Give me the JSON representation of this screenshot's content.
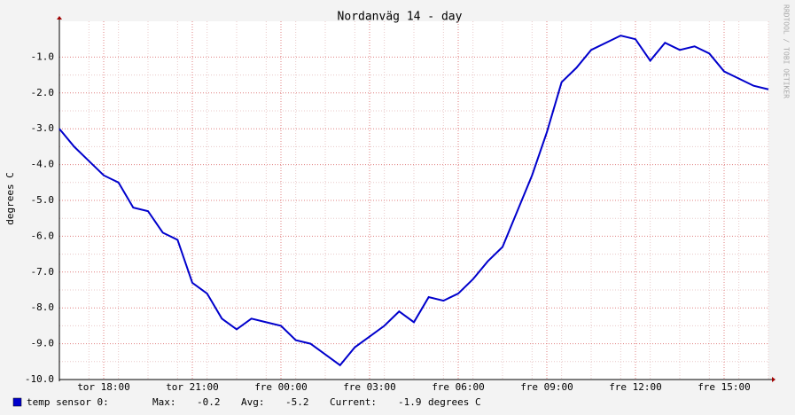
{
  "chart_data": {
    "type": "line",
    "title": "Nordanväg 14 - day",
    "y_label": "degrees C",
    "side_text": "RRDTOOL / TOBI OETIKER",
    "categories": [
      null,
      null,
      null,
      "tor 18:00",
      null,
      null,
      null,
      null,
      null,
      "tor 21:00",
      null,
      null,
      null,
      null,
      null,
      "fre 00:00",
      null,
      null,
      null,
      null,
      null,
      "fre 03:00",
      null,
      null,
      null,
      null,
      null,
      "fre 06:00",
      null,
      null,
      null,
      null,
      null,
      "fre 09:00",
      null,
      null,
      null,
      null,
      null,
      "fre 12:00",
      null,
      null,
      null,
      null,
      null,
      "fre 15:00",
      null,
      null,
      null
    ],
    "series": [
      {
        "name": "temp sensor 0:",
        "color": "#0000cc",
        "values": [
          -3.0,
          -3.5,
          -3.9,
          -4.3,
          -4.5,
          -5.2,
          -5.3,
          -5.9,
          -6.1,
          -7.3,
          -7.6,
          -8.3,
          -8.6,
          -8.3,
          -8.4,
          -8.5,
          -8.9,
          -9.0,
          -9.3,
          -9.6,
          -9.1,
          -8.8,
          -8.5,
          -8.1,
          -8.4,
          -7.7,
          -7.8,
          -7.6,
          -7.2,
          -6.7,
          -6.3,
          -5.3,
          -4.3,
          -3.1,
          -1.7,
          -1.3,
          -0.8,
          -0.6,
          -0.4,
          -0.5,
          -1.1,
          -0.6,
          -0.8,
          -0.7,
          -0.9,
          -1.4,
          -1.6,
          -1.8,
          -1.9
        ]
      }
    ],
    "ylim": [
      -10,
      0
    ],
    "yticks": [
      {
        "value": -10,
        "label": "-10.0"
      },
      {
        "value": -9,
        "label": "-9.0"
      },
      {
        "value": -8,
        "label": "-8.0"
      },
      {
        "value": -7,
        "label": "-7.0"
      },
      {
        "value": -6,
        "label": "-6.0"
      },
      {
        "value": -5,
        "label": "-5.0"
      },
      {
        "value": -4,
        "label": "-4.0"
      },
      {
        "value": -3,
        "label": "-3.0"
      },
      {
        "value": -2,
        "label": "-2.0"
      },
      {
        "value": -1,
        "label": "-1.0"
      }
    ],
    "grid": true,
    "legend": {
      "max_label": "Max:",
      "max": -0.2,
      "avg_label": "Avg:",
      "avg": -5.2,
      "current_label": "Current:",
      "current": -1.9,
      "unit": "degrees C"
    }
  }
}
